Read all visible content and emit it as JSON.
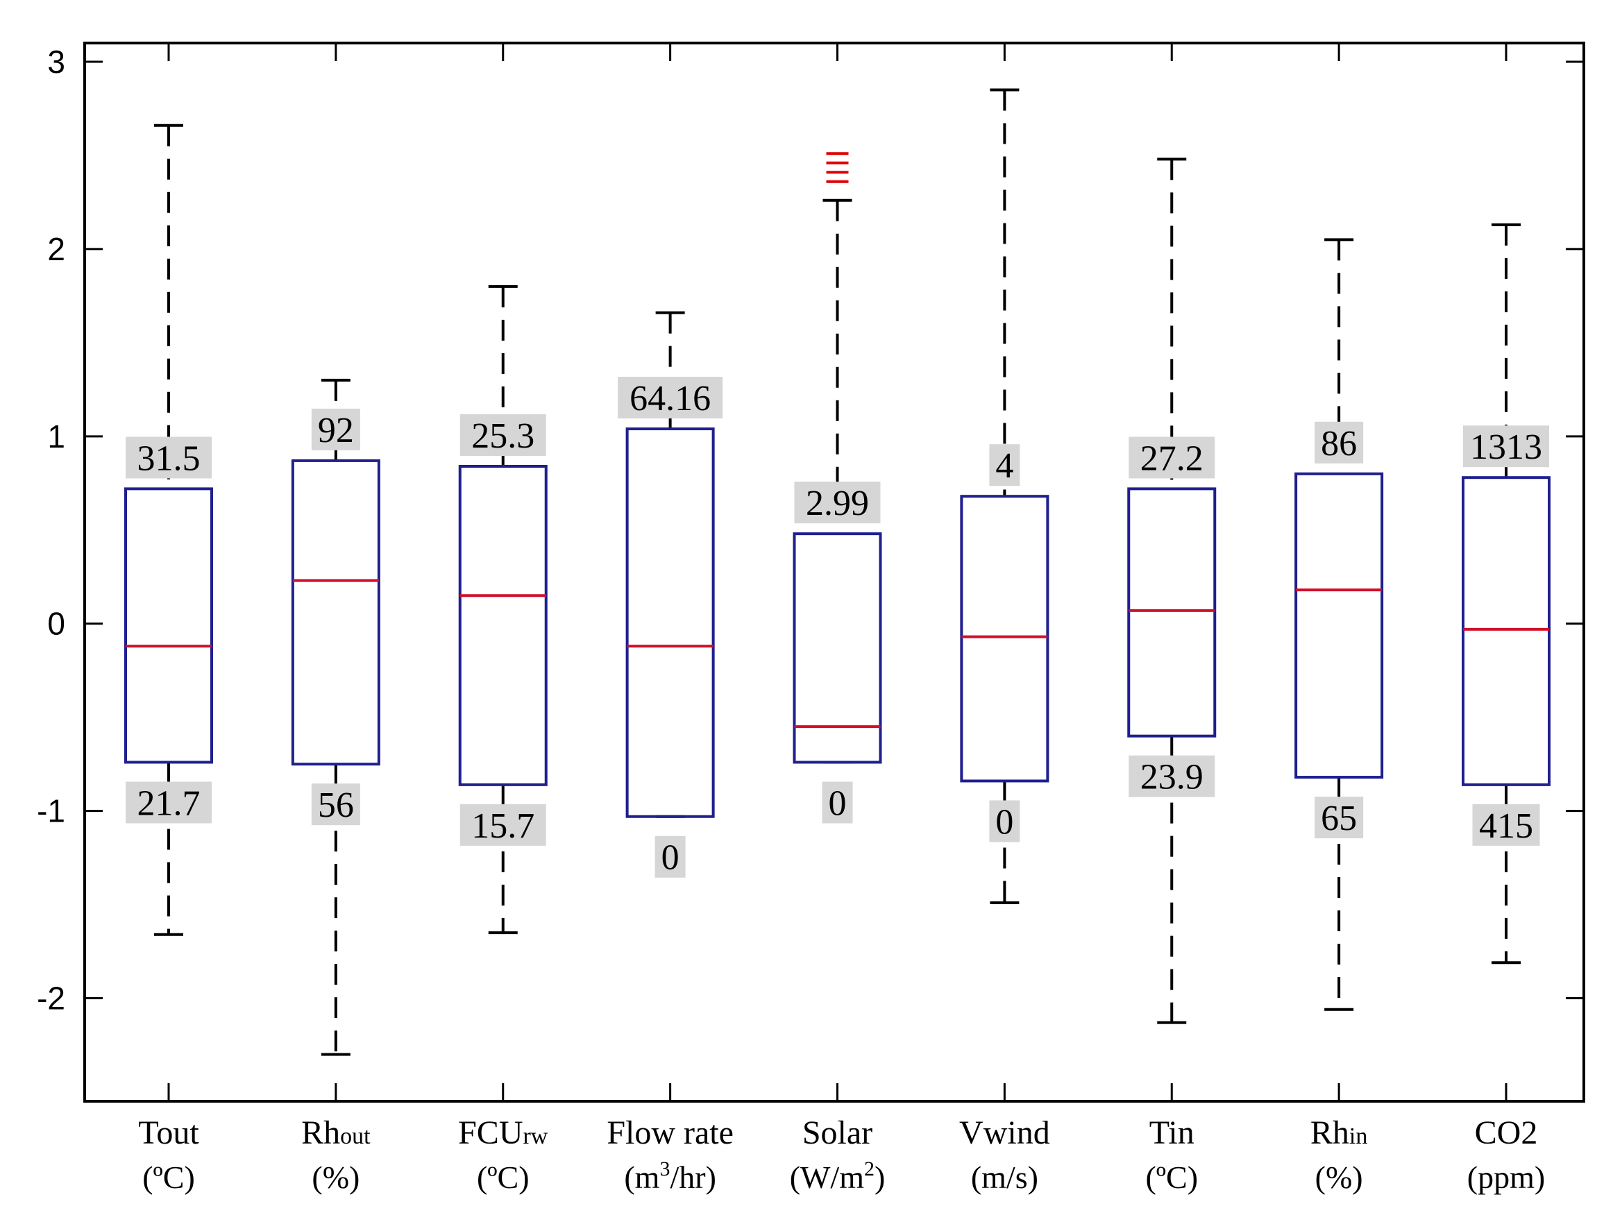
{
  "chart_data": {
    "type": "box",
    "ylim": [
      -2.55,
      3.1
    ],
    "yticks": [
      "-2",
      "-1",
      "0",
      "1",
      "2",
      "3"
    ],
    "colors": {
      "box": "#1f1f8f",
      "median": "#d0102a",
      "whisker": "#000000",
      "outlier": "#e00000"
    },
    "series": [
      {
        "name": "Tout",
        "label_main": "Tout",
        "label_sub": "",
        "unit": "(ºC)",
        "unit_sup": "",
        "unit_tail": "",
        "whisker_low": -1.66,
        "q1": -0.74,
        "median": -0.12,
        "q3": 0.72,
        "whisker_high": 2.66,
        "top_annotation": "31.5",
        "bottom_annotation": "21.7",
        "outliers": []
      },
      {
        "name": "Rhout",
        "label_main": "Rh",
        "label_sub": "out",
        "unit": "(%)",
        "unit_sup": "",
        "unit_tail": "",
        "whisker_low": -2.3,
        "q1": -0.75,
        "median": 0.23,
        "q3": 0.87,
        "whisker_high": 1.3,
        "top_annotation": "92",
        "bottom_annotation": "56",
        "outliers": []
      },
      {
        "name": "FCUrw",
        "label_main": "FCU",
        "label_sub": "rw",
        "unit": "(ºC)",
        "unit_sup": "",
        "unit_tail": "",
        "whisker_low": -1.65,
        "q1": -0.86,
        "median": 0.15,
        "q3": 0.84,
        "whisker_high": 1.8,
        "top_annotation": "25.3",
        "bottom_annotation": "15.7",
        "outliers": []
      },
      {
        "name": "Flow rate",
        "label_main": "Flow rate",
        "label_sub": "",
        "unit": "(m",
        "unit_sup": "3",
        "unit_tail": "/hr)",
        "whisker_low": -1.03,
        "q1": -1.03,
        "median": -0.12,
        "q3": 1.04,
        "whisker_high": 1.66,
        "top_annotation": "64.16",
        "bottom_annotation": "0",
        "outliers": []
      },
      {
        "name": "Solar",
        "label_main": "Solar",
        "label_sub": "",
        "unit": "(W/m",
        "unit_sup": "2",
        "unit_tail": ")",
        "whisker_low": -0.74,
        "q1": -0.74,
        "median": -0.55,
        "q3": 0.48,
        "whisker_high": 2.26,
        "top_annotation": "2.99",
        "bottom_annotation": "0",
        "outliers": [
          2.36,
          2.41,
          2.46,
          2.51
        ]
      },
      {
        "name": "Vwind",
        "label_main": "Vwind",
        "label_sub": "",
        "unit": "(m/s)",
        "unit_sup": "",
        "unit_tail": "",
        "whisker_low": -1.49,
        "q1": -0.84,
        "median": -0.07,
        "q3": 0.68,
        "whisker_high": 2.85,
        "top_annotation": "4",
        "bottom_annotation": "0",
        "outliers": []
      },
      {
        "name": "Tin",
        "label_main": "Tin",
        "label_sub": "",
        "unit": "(ºC)",
        "unit_sup": "",
        "unit_tail": "",
        "whisker_low": -2.13,
        "q1": -0.6,
        "median": 0.07,
        "q3": 0.72,
        "whisker_high": 2.48,
        "top_annotation": "27.2",
        "bottom_annotation": "23.9",
        "outliers": []
      },
      {
        "name": "Rhin",
        "label_main": "Rh",
        "label_sub": "in",
        "unit": "(%)",
        "unit_sup": "",
        "unit_tail": "",
        "whisker_low": -2.06,
        "q1": -0.82,
        "median": 0.18,
        "q3": 0.8,
        "whisker_high": 2.05,
        "top_annotation": "86",
        "bottom_annotation": "65",
        "outliers": []
      },
      {
        "name": "CO2",
        "label_main": "CO2",
        "label_sub": "",
        "unit": "(ppm)",
        "unit_sup": "",
        "unit_tail": "",
        "whisker_low": -1.81,
        "q1": -0.86,
        "median": -0.03,
        "q3": 0.78,
        "whisker_high": 2.13,
        "top_annotation": "1313",
        "bottom_annotation": "415",
        "outliers": []
      }
    ]
  }
}
